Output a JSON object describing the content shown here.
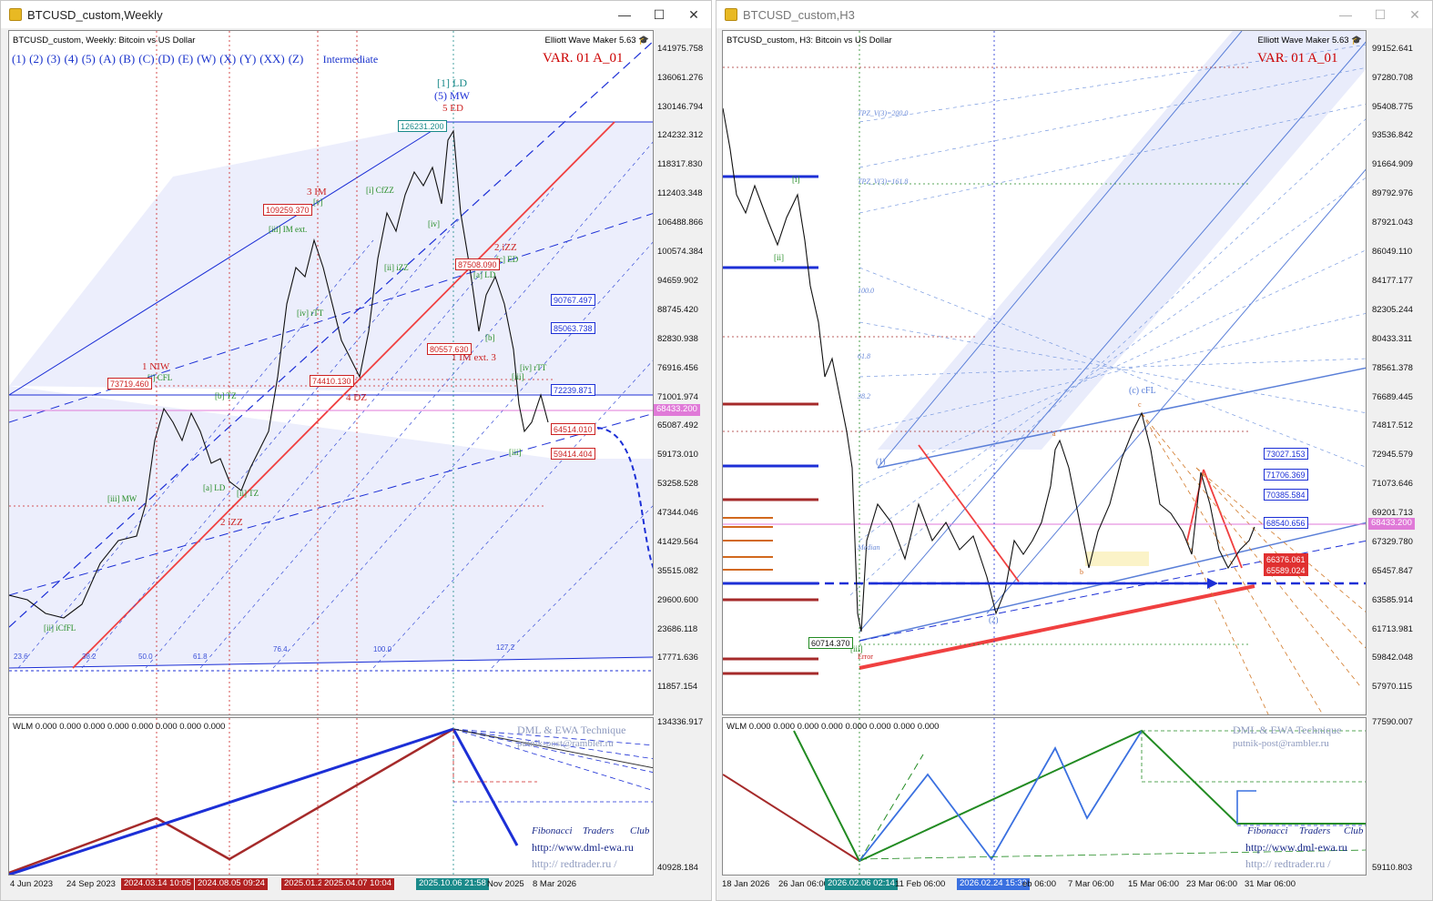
{
  "left": {
    "window_title": "BTCUSD_custom,Weekly",
    "symbol_line": "BTCUSD_custom, Weekly:  Bitcoin vs US Dollar",
    "ewm_label": "Elliott Wave Maker 5.63",
    "var_label": "VAR. 01 A_01",
    "degrees": [
      "(1)",
      "(2)",
      "(3)",
      "(4)",
      "(5)",
      "(A)",
      "(B)",
      "(C)",
      "(D)",
      "(E)",
      "(W)",
      "(X)",
      "(Y)",
      "(XX)",
      "(Z)"
    ],
    "degree_name": "Intermediate",
    "price_scale": [
      "141975.758",
      "136061.276",
      "130146.794",
      "124232.312",
      "118317.830",
      "112403.348",
      "106488.866",
      "100574.384",
      "94659.902",
      "88745.420",
      "82830.938",
      "76916.456",
      "71001.974",
      "65087.492",
      "59173.010",
      "53258.528",
      "47344.046",
      "41429.564",
      "35515.082",
      "29600.600",
      "23686.118",
      "17771.636",
      "11857.154"
    ],
    "price_boxes_blue": [
      "90767.497",
      "85063.738",
      "72239.871"
    ],
    "price_boxes_red": [
      "64514.010",
      "59414.404"
    ],
    "current_price": "68433.200",
    "boxed_levels": [
      "126231.200",
      "109259.370",
      "73719.460",
      "74410.130",
      "87508.090",
      "80557.630"
    ],
    "wave_labels": [
      "[1] LD",
      "(5) MW",
      "5 ED",
      "3 IM",
      "1 NIW",
      "2 iZZ",
      "4 DZ",
      "1 IM ext. 3",
      "2 iZZ",
      "[iii] MW",
      "[i] CFL",
      "[ii] iCfFL",
      "[a] LD",
      "[b] TZ",
      "[ii] iZZ",
      "[iv] rTT",
      "[iii] IM ext.",
      "[i] CfZZ",
      "[iv] rTT",
      "[iii]",
      "[iv]",
      "[v]",
      "[a] LD",
      "[b]",
      "[c] ED",
      "[ii] TZ",
      "[iii]"
    ],
    "sub_title": "WLM 0.000 0.000 0.000 0.000 0.000 0.000 0.000 0.000",
    "sub_scale": [
      "134336.917",
      "40928.184"
    ],
    "watermark": [
      "DML & EWA Technique",
      "putnik-post@rambler.ru",
      "Fibonacci",
      "Traders",
      "Club",
      "http://www.dml-ewa.ru",
      "http:// redtrader.ru /"
    ],
    "time_labels": [
      "4 Jun 2023",
      "24 Sep 2023",
      "8 Mar 2026",
      "Nov 2025"
    ],
    "time_tags_red": [
      "2024.03.14 10:05",
      "2024.08.05 09:24",
      "2025.01.2",
      "2025.04.07 10:04"
    ],
    "time_tag_teal": "2025.10.06 21:58"
  },
  "right": {
    "window_title": "BTCUSD_custom,H3",
    "symbol_line": "BTCUSD_custom, H3:  Bitcoin vs US Dollar",
    "ewm_label": "Elliott Wave Maker 5.63",
    "var_label": "VAR. 01 A_01",
    "price_scale": [
      "99152.641",
      "97280.708",
      "95408.775",
      "93536.842",
      "91664.909",
      "89792.976",
      "87921.043",
      "86049.110",
      "84177.177",
      "82305.244",
      "80433.311",
      "78561.378",
      "76689.445",
      "74817.512",
      "72945.579",
      "71073.646",
      "69201.713",
      "67329.780",
      "65457.847",
      "63585.914",
      "61713.981",
      "59842.048",
      "57970.115"
    ],
    "price_boxes_blue": [
      "73027.153",
      "71706.369",
      "70385.584",
      "68540.656"
    ],
    "price_boxes_red": [
      "66376.061",
      "65589.024"
    ],
    "current_price": "68433.200",
    "boxed_levels": [
      "60714.370"
    ],
    "wave_labels": [
      "[i]",
      "[ii]",
      "[iii]",
      "(c) cFL",
      "a",
      "b",
      "c",
      "(1)",
      "(2)",
      "Error"
    ],
    "sub_title": "WLM 0.000 0.000 0.000 0.000 0.000 0.000 0.000 0.000",
    "sub_scale": [
      "77590.007",
      "59110.803"
    ],
    "watermark": [
      "DML & EWA Technique",
      "putnik-post@rambler.ru",
      "Fibonacci",
      "Traders",
      "Club",
      "http://www.dml-ewa.ru",
      "http:// redtrader.ru /"
    ],
    "time_labels": [
      "18 Jan 2026",
      "26 Jan 06:00",
      "11 Feb 06:00",
      "eb 06:00",
      "7 Mar 06:00",
      "15 Mar 06:00",
      "23 Mar 06:00",
      "31 Mar 06:00"
    ],
    "time_tag_teal": "2026.02.06 02:14",
    "time_tag_blue": "2026.02.24 15:33"
  },
  "colors": {
    "bull_line": "#1c2fd6",
    "bear_line": "#a52a2a",
    "channel_fill": "#e9ecfb",
    "red_line": "#f04040",
    "price_line": "#e07ad8"
  }
}
